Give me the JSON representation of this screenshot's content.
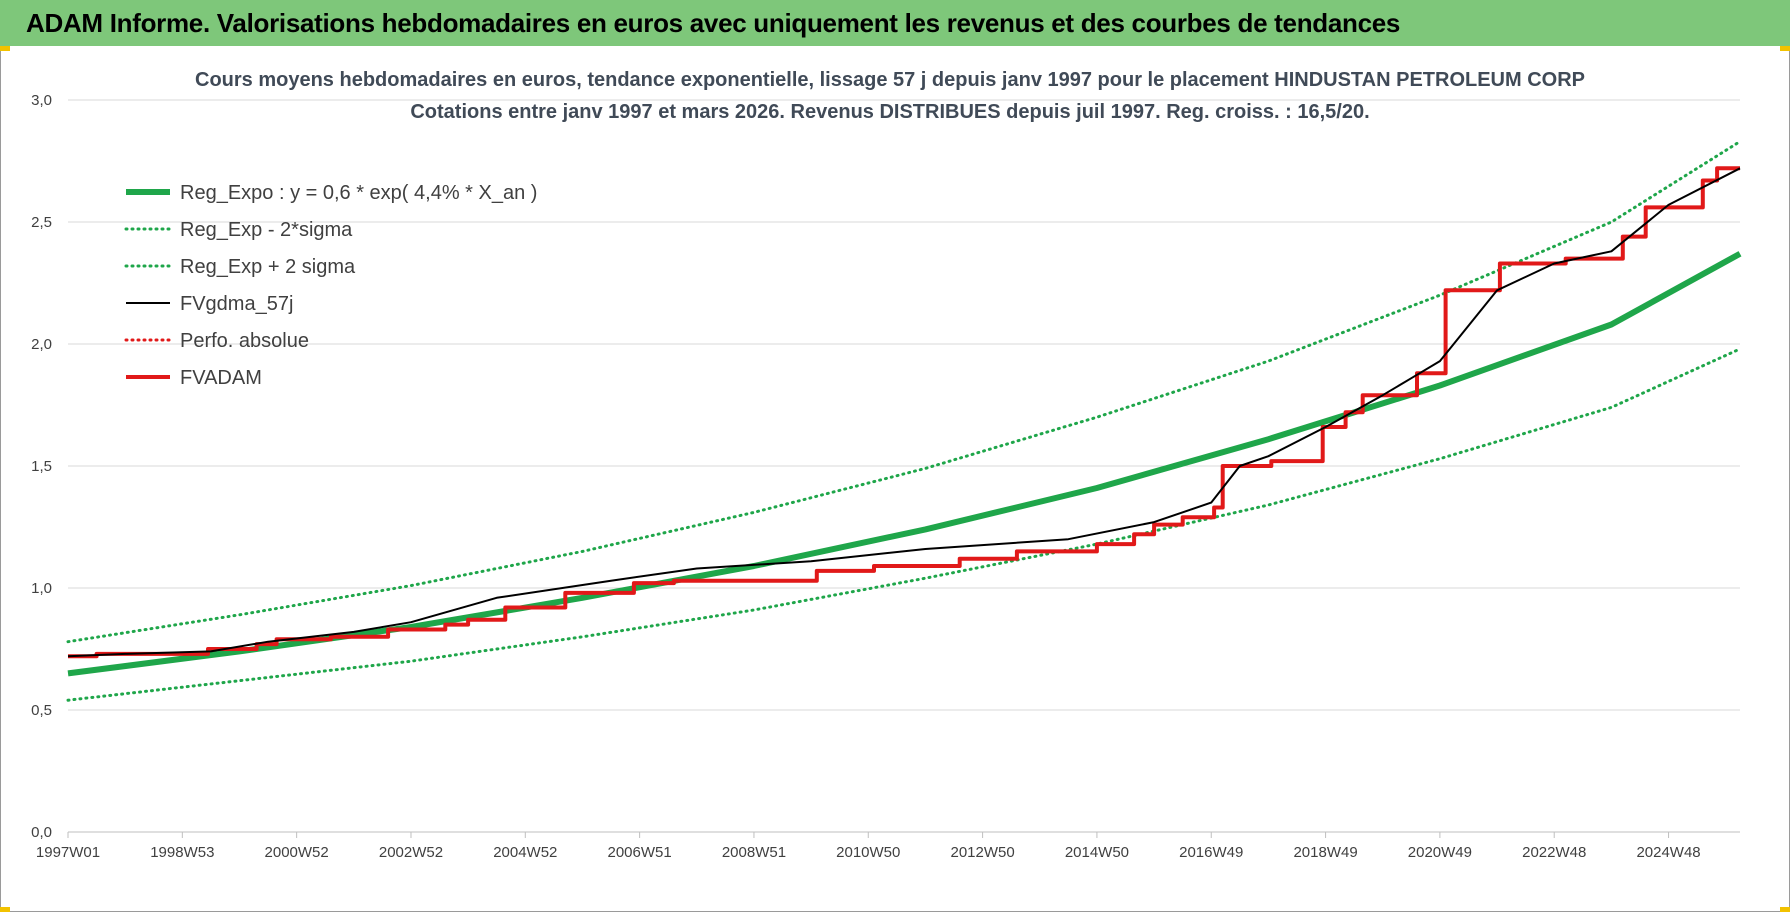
{
  "banner": {
    "title": "ADAM Informe. Valorisations hebdomadaires en euros avec uniquement les revenus et des courbes de tendances"
  },
  "colors": {
    "banner_bg": "#7ec77a",
    "trend": "#1fa64a",
    "adam": "#e11919",
    "gdma": "#000000",
    "grid": "#d9d9d9"
  },
  "chart_data": {
    "type": "line",
    "title": "Cours moyens hebdomadaires en euros, tendance exponentielle, lissage 57 j depuis janv 1997 pour le placement HINDUSTAN PETROLEUM CORP",
    "subtitle": "Cotations entre janv 1997 et mars 2026. Revenus DISTRIBUES depuis juil 1997. Reg. croiss. : 16,5/20.",
    "xlabel": "",
    "ylabel": "",
    "x_range": [
      1997.0,
      2026.25
    ],
    "ylim": [
      0,
      3
    ],
    "y_ticks": [
      0,
      0.5,
      1,
      1.5,
      2,
      2.5,
      3
    ],
    "y_tick_labels": [
      "0,0",
      "0,5",
      "1,0",
      "1,5",
      "2,0",
      "2,5",
      "3,0"
    ],
    "x_ticks": [
      {
        "label": "1997W01",
        "x": 1997.0
      },
      {
        "label": "1998W53",
        "x": 1999.0
      },
      {
        "label": "2000W52",
        "x": 2001.0
      },
      {
        "label": "2002W52",
        "x": 2003.0
      },
      {
        "label": "2004W52",
        "x": 2005.0
      },
      {
        "label": "2006W51",
        "x": 2007.0
      },
      {
        "label": "2008W51",
        "x": 2009.0
      },
      {
        "label": "2010W50",
        "x": 2011.0
      },
      {
        "label": "2012W50",
        "x": 2013.0
      },
      {
        "label": "2014W50",
        "x": 2015.0
      },
      {
        "label": "2016W49",
        "x": 2017.0
      },
      {
        "label": "2018W49",
        "x": 2019.0
      },
      {
        "label": "2020W49",
        "x": 2021.0
      },
      {
        "label": "2022W48",
        "x": 2023.0
      },
      {
        "label": "2024W48",
        "x": 2025.0
      }
    ],
    "grid": true,
    "legend_position": "top-left",
    "series": [
      {
        "name": "Reg_Expo : y = 0,6 * exp( 4,4% *  X_an )",
        "style": "solid-thick",
        "color": "#1fa64a",
        "x": [
          1997.0,
          2000.0,
          2003.0,
          2006.0,
          2009.0,
          2012.0,
          2015.0,
          2018.0,
          2021.0,
          2024.0,
          2026.25
        ],
        "values": [
          0.65,
          0.74,
          0.84,
          0.96,
          1.09,
          1.24,
          1.41,
          1.61,
          1.83,
          2.08,
          2.37
        ]
      },
      {
        "name": "Reg_Exp - 2*sigma",
        "style": "dotted",
        "color": "#1fa64a",
        "x": [
          1997.0,
          2000.0,
          2003.0,
          2006.0,
          2009.0,
          2012.0,
          2015.0,
          2018.0,
          2021.0,
          2024.0,
          2026.25
        ],
        "values": [
          0.54,
          0.62,
          0.7,
          0.8,
          0.91,
          1.04,
          1.18,
          1.34,
          1.53,
          1.74,
          1.98
        ]
      },
      {
        "name": "Reg_Exp + 2 sigma",
        "style": "dotted",
        "color": "#1fa64a",
        "x": [
          1997.0,
          2000.0,
          2003.0,
          2006.0,
          2009.0,
          2012.0,
          2015.0,
          2018.0,
          2021.0,
          2024.0,
          2026.25
        ],
        "values": [
          0.78,
          0.89,
          1.01,
          1.15,
          1.31,
          1.49,
          1.7,
          1.93,
          2.2,
          2.5,
          2.83
        ]
      },
      {
        "name": "FVgdma_57j",
        "style": "solid-thin",
        "color": "#000000",
        "x": [
          1997.0,
          1998.0,
          1999.5,
          2000.5,
          2002.0,
          2003.0,
          2004.5,
          2006.5,
          2008.0,
          2010.0,
          2012.0,
          2014.5,
          2016.0,
          2017.0,
          2017.5,
          2018.0,
          2019.0,
          2020.0,
          2020.5,
          2021.0,
          2022.0,
          2023.0,
          2024.0,
          2025.0,
          2026.25
        ],
        "values": [
          0.72,
          0.73,
          0.74,
          0.78,
          0.82,
          0.86,
          0.96,
          1.03,
          1.08,
          1.11,
          1.16,
          1.2,
          1.27,
          1.35,
          1.5,
          1.54,
          1.66,
          1.79,
          1.86,
          1.93,
          2.22,
          2.33,
          2.38,
          2.57,
          2.72
        ]
      },
      {
        "name": "Perfo. absolue",
        "style": "dotted",
        "color": "#e11919",
        "x": [],
        "values": []
      },
      {
        "name": "FVADAM",
        "style": "solid-thick-step",
        "color": "#e11919",
        "x": [
          1997.0,
          1997.5,
          1999.45,
          2000.3,
          2000.65,
          2001.6,
          2002.6,
          2003.6,
          2004.0,
          2004.65,
          2005.7,
          2006.9,
          2007.6,
          2010.1,
          2011.1,
          2012.6,
          2013.6,
          2015.0,
          2015.65,
          2016.0,
          2016.5,
          2017.05,
          2017.2,
          2018.05,
          2018.95,
          2019.35,
          2019.65,
          2020.6,
          2021.1,
          2021.65,
          2022.05,
          2023.2,
          2024.2,
          2024.6,
          2025.6,
          2025.85,
          2026.25
        ],
        "values": [
          0.72,
          0.73,
          0.75,
          0.77,
          0.79,
          0.8,
          0.83,
          0.85,
          0.87,
          0.92,
          0.98,
          1.02,
          1.03,
          1.07,
          1.09,
          1.12,
          1.15,
          1.18,
          1.22,
          1.26,
          1.29,
          1.33,
          1.5,
          1.52,
          1.66,
          1.72,
          1.79,
          1.88,
          2.22,
          2.22,
          2.33,
          2.35,
          2.44,
          2.56,
          2.67,
          2.72,
          2.72
        ]
      }
    ]
  }
}
